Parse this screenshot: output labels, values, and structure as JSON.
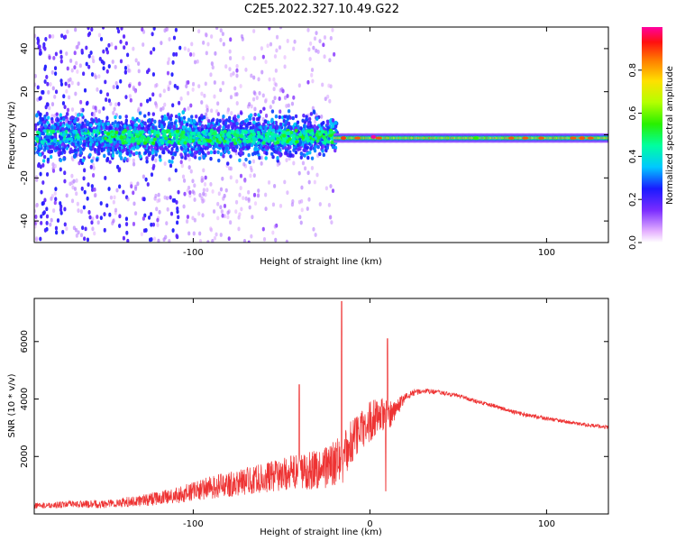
{
  "figure": {
    "title": "C2E5.2022.327.10.49.G22"
  },
  "chart_data": [
    {
      "type": "heatmap",
      "xlabel": "Height of straight line (km)",
      "ylabel": "Frequency (Hz)",
      "xlim": [
        -190,
        135
      ],
      "ylim": [
        -50,
        50
      ],
      "xticks": [
        -100,
        0,
        100
      ],
      "xtick_labels": [
        "-100",
        "",
        "100"
      ],
      "yticks": [
        -40,
        -20,
        0,
        20,
        40
      ],
      "ytick_labels": [
        "-40",
        "-20",
        "0",
        "20",
        "40"
      ],
      "colorbar": {
        "label": "Normalized spectral amplitude",
        "range": [
          0,
          1
        ],
        "ticks": [
          0.0,
          0.2,
          0.4,
          0.6,
          0.8
        ],
        "tick_labels": [
          "0.0",
          "0.2",
          "0.4",
          "0.6",
          "0.8"
        ],
        "colormap": "rainbow"
      },
      "description_points": [
        {
          "x": -15,
          "freq_hz": -1.5,
          "amp": 0.9
        },
        {
          "x": 2,
          "freq_hz": -1.0,
          "amp": 1.0
        },
        {
          "x": 60,
          "freq_hz": -1.5,
          "amp": 0.55
        },
        {
          "x": 120,
          "freq_hz": -1.5,
          "amp": 0.85
        }
      ]
    },
    {
      "type": "line",
      "xlabel": "Height of straight line (km)",
      "ylabel": "SNR (10 * v/v)",
      "xlim": [
        -190,
        135
      ],
      "ylim": [
        0,
        7500
      ],
      "xticks": [
        -100,
        0,
        100
      ],
      "xtick_labels": [
        "-100",
        "0",
        "100"
      ],
      "yticks": [
        2000,
        4000,
        6000
      ],
      "ytick_labels": [
        "2000",
        "4000",
        "6000"
      ],
      "series": [
        {
          "color": "#ee3333",
          "x": [
            -190,
            -170,
            -150,
            -130,
            -110,
            -90,
            -70,
            -50,
            -40,
            -30,
            -20,
            -15,
            -10,
            -5,
            0,
            5,
            10,
            15,
            20,
            25,
            30,
            40,
            50,
            60,
            70,
            80,
            90,
            100,
            110,
            120,
            135
          ],
          "y": [
            250,
            300,
            300,
            400,
            550,
            800,
            1000,
            1200,
            1300,
            1350,
            1500,
            1700,
            2300,
            2700,
            3000,
            3300,
            3200,
            3600,
            4000,
            4200,
            4250,
            4200,
            4100,
            3900,
            3750,
            3550,
            3400,
            3300,
            3200,
            3100,
            3000
          ],
          "noise": [
            120,
            150,
            180,
            250,
            350,
            500,
            600,
            700,
            800,
            900,
            1000,
            1100,
            1000,
            900,
            900,
            800,
            700,
            400,
            200,
            150,
            120,
            100,
            90,
            90,
            90,
            90,
            90,
            90,
            80,
            80,
            80
          ]
        }
      ],
      "spikes": [
        {
          "x": -16,
          "y": 7400
        },
        {
          "x": 10,
          "y": 6100
        },
        {
          "x": -40,
          "y": 4500
        },
        {
          "x": 9,
          "y": 800
        }
      ]
    }
  ]
}
